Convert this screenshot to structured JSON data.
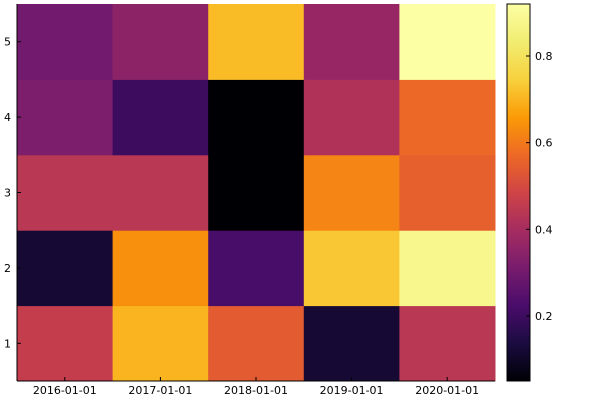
{
  "chart_data": {
    "type": "heatmap",
    "title": "",
    "xlabel": "",
    "ylabel": "",
    "x": [
      "2016-01-01",
      "2017-01-01",
      "2018-01-01",
      "2019-01-01",
      "2020-01-01"
    ],
    "y": [
      "1",
      "2",
      "3",
      "4",
      "5"
    ],
    "values": [
      [
        0.46,
        0.7,
        0.54,
        0.12,
        0.44
      ],
      [
        0.12,
        0.64,
        0.22,
        0.73,
        0.88
      ],
      [
        0.44,
        0.44,
        0.05,
        0.62,
        0.55
      ],
      [
        0.32,
        0.2,
        0.05,
        0.42,
        0.57
      ],
      [
        0.3,
        0.35,
        0.71,
        0.37,
        0.92
      ]
    ],
    "colorbar": {
      "range": [
        0.05,
        0.92
      ],
      "ticks": [
        "0.2",
        "0.4",
        "0.6",
        "0.8"
      ],
      "colormap": "inferno"
    },
    "grid": false,
    "legend": "none"
  }
}
